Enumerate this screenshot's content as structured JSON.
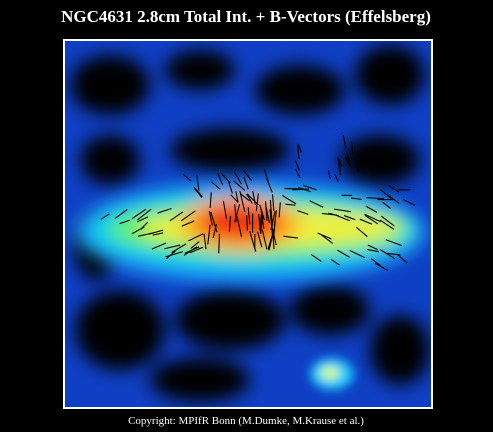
{
  "header": {
    "title": "NGC4631 2.8cm Total Int. + B-Vectors (Effelsberg)"
  },
  "footer": {
    "copyright": "Copyright: MPIfR Bonn (M.Dumke, M.Krause et al.)"
  }
}
